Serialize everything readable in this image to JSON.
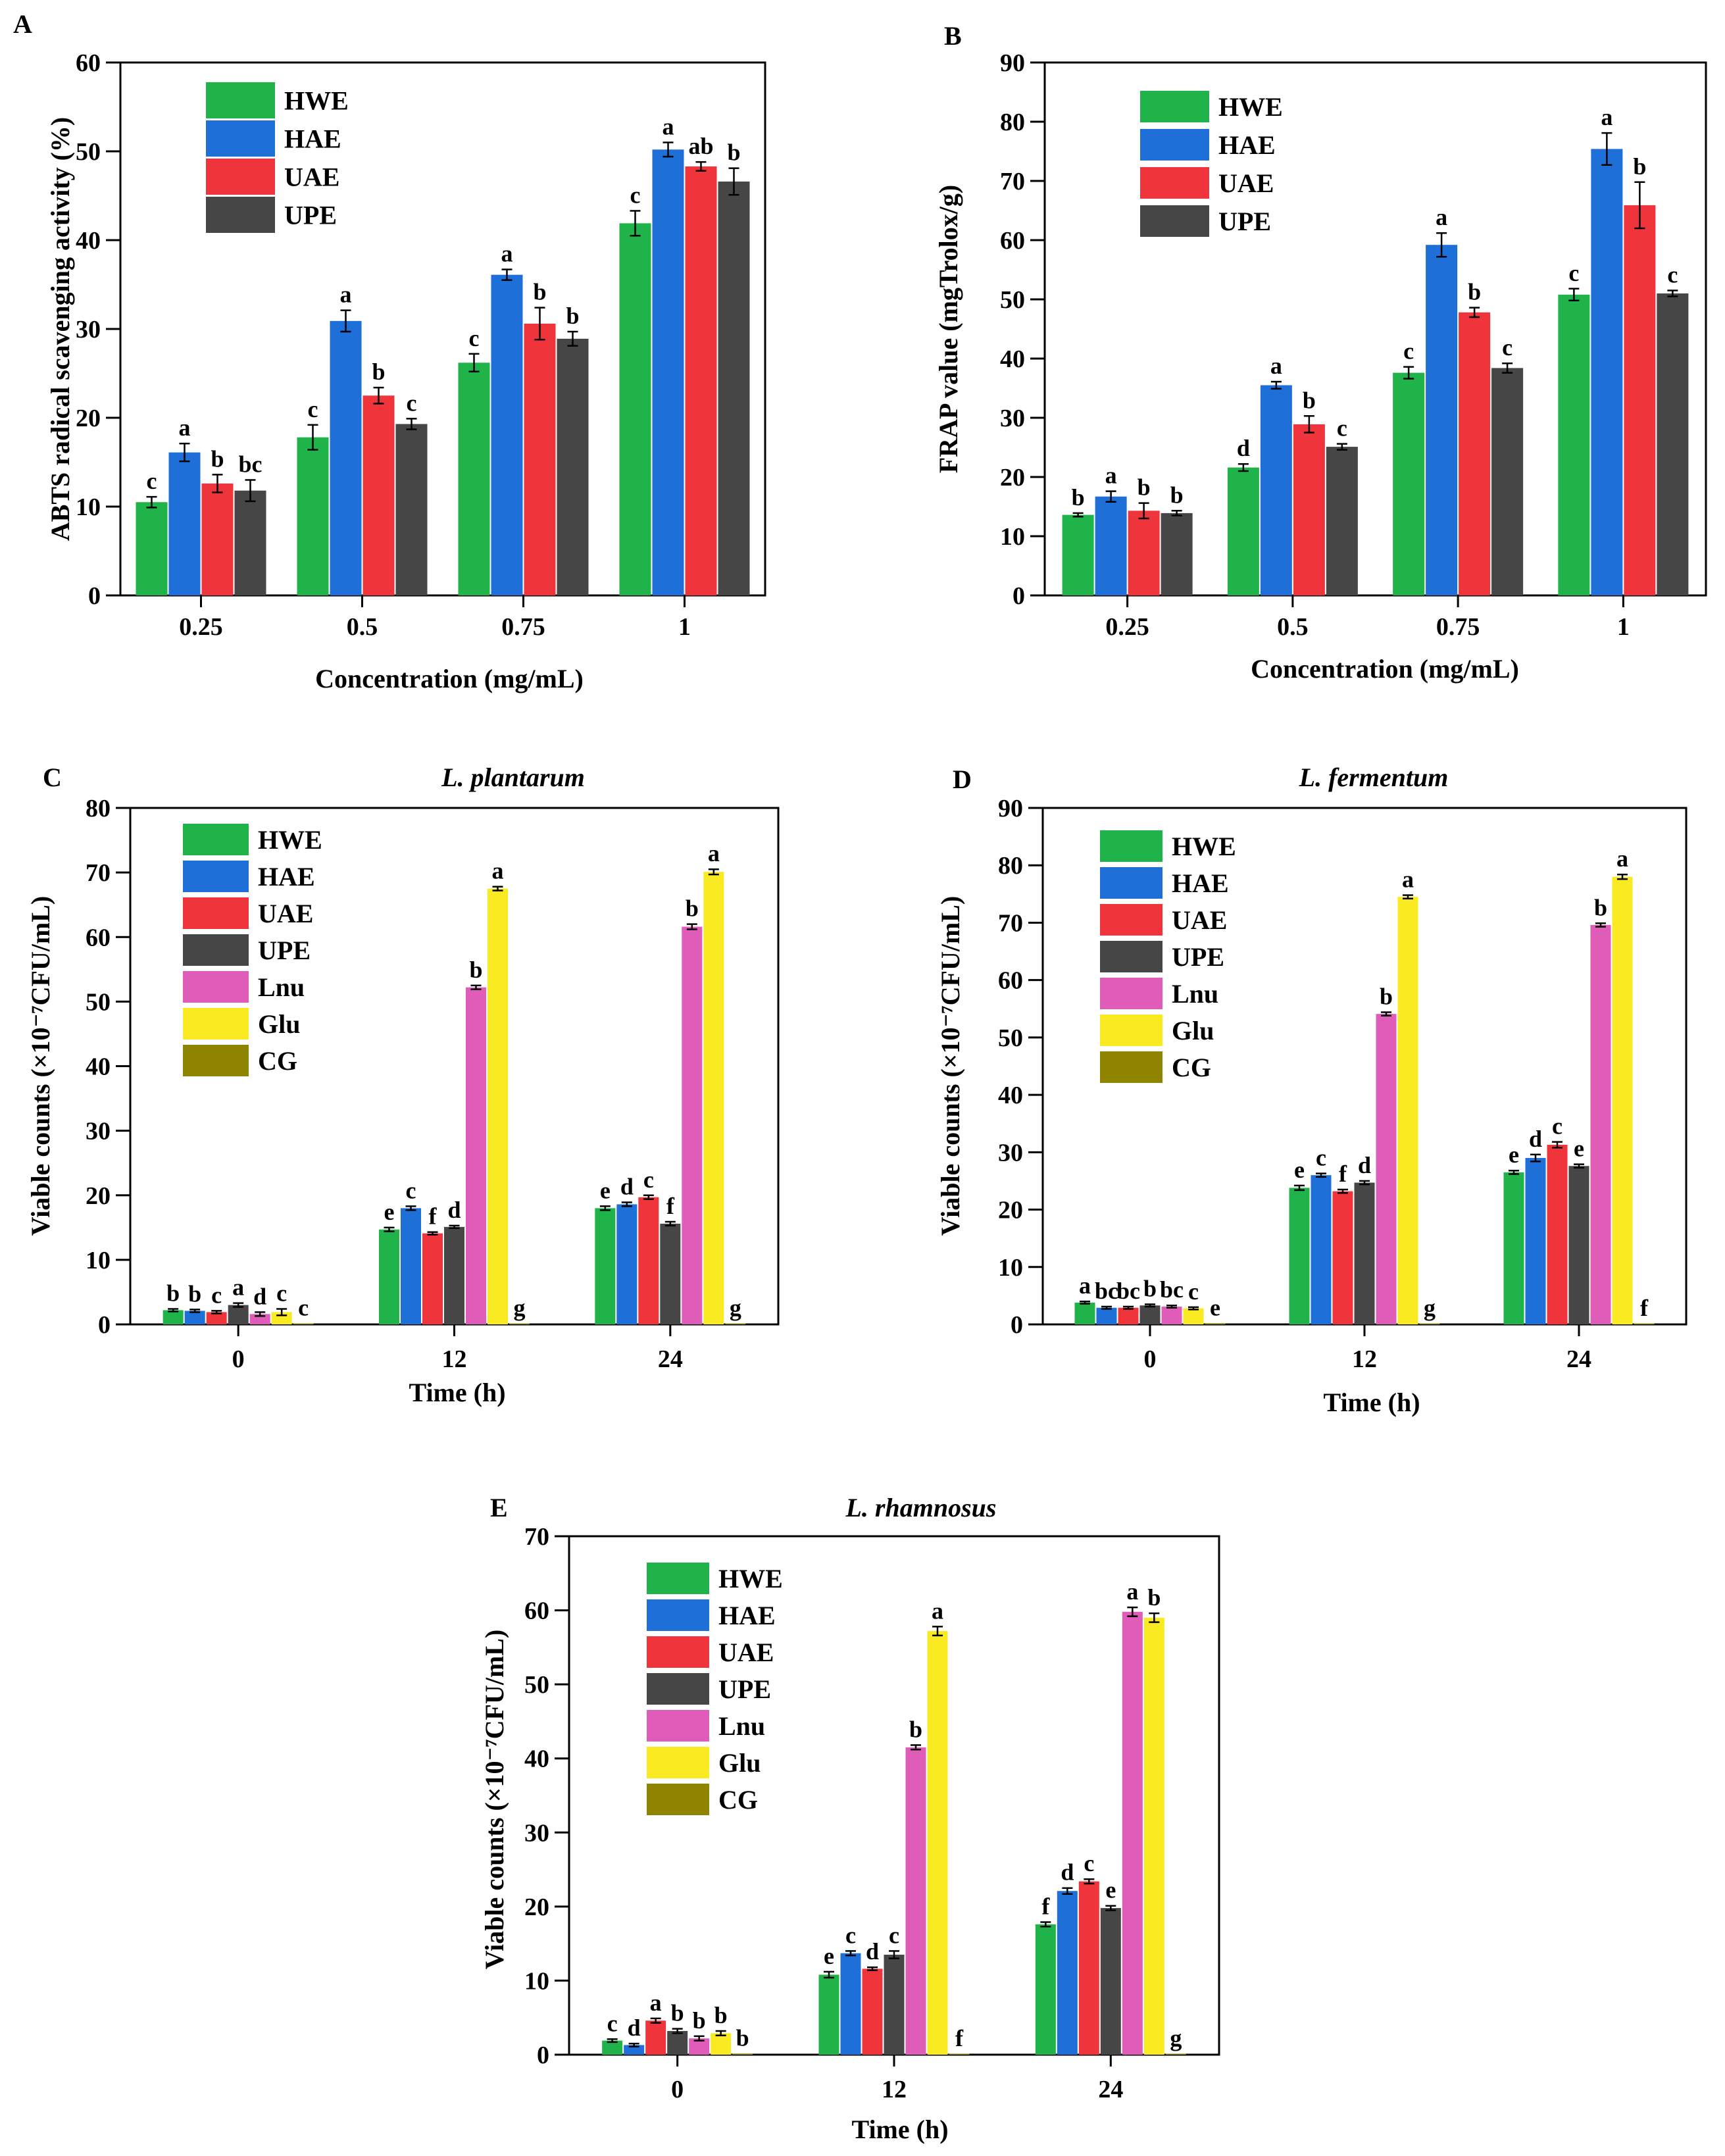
{
  "colors": {
    "HWE": "#1fb34a",
    "HAE": "#1f6fd8",
    "UAE": "#f0343b",
    "UPE": "#464646",
    "Lnu": "#e05cb9",
    "Glu": "#f9ea22",
    "CG": "#8f8400"
  },
  "chart_data": [
    {
      "id": "A",
      "panel_label": "A",
      "type": "bar",
      "title": "",
      "xlabel": "Concentration (mg/mL)",
      "ylabel": "ABTS radical scavenging activity (%)",
      "ylim": [
        0,
        60
      ],
      "yticks": [
        0,
        10,
        20,
        30,
        40,
        50,
        60
      ],
      "categories": [
        "0.25",
        "0.5",
        "0.75",
        "1"
      ],
      "legend": [
        "HWE",
        "HAE",
        "UAE",
        "UPE"
      ],
      "legend_position": "top-left",
      "series": [
        {
          "name": "HWE",
          "values": [
            10.5,
            17.8,
            26.2,
            41.9
          ],
          "errors": [
            0.6,
            1.4,
            1.0,
            1.4
          ],
          "labels": [
            "c",
            "c",
            "c",
            "c"
          ]
        },
        {
          "name": "HAE",
          "values": [
            16.1,
            30.9,
            36.1,
            50.2
          ],
          "errors": [
            1.0,
            1.2,
            0.6,
            0.8
          ],
          "labels": [
            "a",
            "a",
            "a",
            "a"
          ]
        },
        {
          "name": "UAE",
          "values": [
            12.6,
            22.5,
            30.6,
            48.3
          ],
          "errors": [
            1.0,
            0.9,
            1.8,
            0.5
          ],
          "labels": [
            "b",
            "b",
            "b",
            "ab"
          ]
        },
        {
          "name": "UPE",
          "values": [
            11.8,
            19.3,
            28.9,
            46.6
          ],
          "errors": [
            1.2,
            0.6,
            0.8,
            1.5
          ],
          "labels": [
            "bc",
            "c",
            "b",
            "b"
          ]
        }
      ]
    },
    {
      "id": "B",
      "panel_label": "B",
      "type": "bar",
      "title": "",
      "xlabel": "Concentration (mg/mL)",
      "ylabel": "FRAP value (mgTrolox/g)",
      "ylim": [
        0,
        90
      ],
      "yticks": [
        0,
        10,
        20,
        30,
        40,
        50,
        60,
        70,
        80,
        90
      ],
      "categories": [
        "0.25",
        "0.5",
        "0.75",
        "1"
      ],
      "legend": [
        "HWE",
        "HAE",
        "UAE",
        "UPE"
      ],
      "legend_position": "top-left",
      "series": [
        {
          "name": "HWE",
          "values": [
            13.6,
            21.6,
            37.6,
            50.8
          ],
          "errors": [
            0.3,
            0.6,
            1.0,
            1.0
          ],
          "labels": [
            "b",
            "d",
            "c",
            "c"
          ]
        },
        {
          "name": "HAE",
          "values": [
            16.7,
            35.5,
            59.2,
            75.4
          ],
          "errors": [
            0.9,
            0.6,
            2.0,
            2.7
          ],
          "labels": [
            "a",
            "a",
            "a",
            "a"
          ]
        },
        {
          "name": "UAE",
          "values": [
            14.3,
            28.9,
            47.8,
            65.9
          ],
          "errors": [
            1.3,
            1.4,
            0.8,
            3.9
          ],
          "labels": [
            "b",
            "b",
            "b",
            "b"
          ]
        },
        {
          "name": "UPE",
          "values": [
            13.9,
            25.1,
            38.4,
            51.0
          ],
          "errors": [
            0.4,
            0.5,
            0.8,
            0.5
          ],
          "labels": [
            "b",
            "c",
            "c",
            "c"
          ]
        }
      ]
    },
    {
      "id": "C",
      "panel_label": "C",
      "type": "bar",
      "title": "L. plantarum",
      "xlabel": "Time (h)",
      "ylabel": "Viable counts (×10⁻⁷CFU/mL)",
      "ylim": [
        0,
        80
      ],
      "yticks": [
        0,
        10,
        20,
        30,
        40,
        50,
        60,
        70,
        80
      ],
      "categories": [
        "0",
        "12",
        "24"
      ],
      "legend": [
        "HWE",
        "HAE",
        "UAE",
        "UPE",
        "Lnu",
        "Glu",
        "CG"
      ],
      "legend_position": "top-left",
      "series": [
        {
          "name": "HWE",
          "values": [
            2.2,
            14.7,
            18.0
          ],
          "errors": [
            0.2,
            0.3,
            0.3
          ],
          "labels": [
            "b",
            "e",
            "e"
          ]
        },
        {
          "name": "HAE",
          "values": [
            2.1,
            18.0,
            18.6
          ],
          "errors": [
            0.2,
            0.3,
            0.3
          ],
          "labels": [
            "b",
            "c",
            "d"
          ]
        },
        {
          "name": "UAE",
          "values": [
            1.9,
            14.1,
            19.7
          ],
          "errors": [
            0.2,
            0.2,
            0.3
          ],
          "labels": [
            "c",
            "f",
            "c"
          ]
        },
        {
          "name": "UPE",
          "values": [
            3.0,
            15.1,
            15.6
          ],
          "errors": [
            0.3,
            0.2,
            0.3
          ],
          "labels": [
            "a",
            "d",
            "f"
          ]
        },
        {
          "name": "Lnu",
          "values": [
            1.6,
            52.2,
            61.6
          ],
          "errors": [
            0.3,
            0.3,
            0.4
          ],
          "labels": [
            "d",
            "b",
            "b"
          ]
        },
        {
          "name": "Glu",
          "values": [
            1.9,
            67.5,
            70.1
          ],
          "errors": [
            0.5,
            0.3,
            0.4
          ],
          "labels": [
            "c",
            "a",
            "a"
          ]
        },
        {
          "name": "CG",
          "values": [
            0.15,
            0.1,
            0.1
          ],
          "errors": [
            0,
            0,
            0
          ],
          "labels": [
            "c",
            "g",
            "g"
          ]
        }
      ]
    },
    {
      "id": "D",
      "panel_label": "D",
      "type": "bar",
      "title": "L. fermentum",
      "xlabel": "Time (h)",
      "ylabel": "Viable counts (×10⁻⁷CFU/mL)",
      "ylim": [
        0,
        90
      ],
      "yticks": [
        0,
        10,
        20,
        30,
        40,
        50,
        60,
        70,
        80,
        90
      ],
      "categories": [
        "0",
        "12",
        "24"
      ],
      "legend": [
        "HWE",
        "HAE",
        "UAE",
        "UPE",
        "Lnu",
        "Glu",
        "CG"
      ],
      "legend_position": "top-left",
      "series": [
        {
          "name": "HWE",
          "values": [
            3.8,
            23.8,
            26.5
          ],
          "errors": [
            0.2,
            0.4,
            0.3
          ],
          "labels": [
            "a",
            "e",
            "e"
          ]
        },
        {
          "name": "HAE",
          "values": [
            2.9,
            26.0,
            29.0
          ],
          "errors": [
            0.2,
            0.3,
            0.6
          ],
          "labels": [
            "bc",
            "c",
            "d"
          ]
        },
        {
          "name": "UAE",
          "values": [
            2.9,
            23.2,
            31.3
          ],
          "errors": [
            0.2,
            0.3,
            0.5
          ],
          "labels": [
            "bc",
            "f",
            "c"
          ]
        },
        {
          "name": "UPE",
          "values": [
            3.3,
            24.7,
            27.6
          ],
          "errors": [
            0.2,
            0.3,
            0.3
          ],
          "labels": [
            "b",
            "d",
            "e"
          ]
        },
        {
          "name": "Lnu",
          "values": [
            3.1,
            54.1,
            69.6
          ],
          "errors": [
            0.2,
            0.3,
            0.3
          ],
          "labels": [
            "bc",
            "b",
            "b"
          ]
        },
        {
          "name": "Glu",
          "values": [
            2.8,
            74.5,
            78.0
          ],
          "errors": [
            0.2,
            0.3,
            0.4
          ],
          "labels": [
            "c",
            "a",
            "a"
          ]
        },
        {
          "name": "CG",
          "values": [
            0.2,
            0.1,
            0.1
          ],
          "errors": [
            0,
            0,
            0
          ],
          "labels": [
            "e",
            "g",
            "f"
          ]
        }
      ]
    },
    {
      "id": "E",
      "panel_label": "E",
      "type": "bar",
      "title": "L. rhamnosus",
      "xlabel": "Time (h)",
      "ylabel": "Viable counts (×10⁻⁷CFU/mL)",
      "ylim": [
        0,
        70
      ],
      "yticks": [
        0,
        10,
        20,
        30,
        40,
        50,
        60,
        70
      ],
      "categories": [
        "0",
        "12",
        "24"
      ],
      "legend": [
        "HWE",
        "HAE",
        "UAE",
        "UPE",
        "Lnu",
        "Glu",
        "CG"
      ],
      "legend_position": "top-left",
      "series": [
        {
          "name": "HWE",
          "values": [
            1.9,
            10.8,
            17.6
          ],
          "errors": [
            0.2,
            0.4,
            0.3
          ],
          "labels": [
            "c",
            "e",
            "f"
          ]
        },
        {
          "name": "HAE",
          "values": [
            1.3,
            13.7,
            22.1
          ],
          "errors": [
            0.2,
            0.3,
            0.4
          ],
          "labels": [
            "d",
            "c",
            "d"
          ]
        },
        {
          "name": "UAE",
          "values": [
            4.6,
            11.6,
            23.4
          ],
          "errors": [
            0.3,
            0.2,
            0.3
          ],
          "labels": [
            "a",
            "d",
            "c"
          ]
        },
        {
          "name": "UPE",
          "values": [
            3.2,
            13.5,
            19.8
          ],
          "errors": [
            0.3,
            0.5,
            0.3
          ],
          "labels": [
            "b",
            "c",
            "e"
          ]
        },
        {
          "name": "Lnu",
          "values": [
            2.2,
            41.5,
            59.8
          ],
          "errors": [
            0.3,
            0.3,
            0.6
          ],
          "labels": [
            "b",
            "b",
            "a"
          ]
        },
        {
          "name": "Glu",
          "values": [
            2.9,
            57.2,
            59.0
          ],
          "errors": [
            0.3,
            0.6,
            0.6
          ],
          "labels": [
            "b",
            "a",
            "b"
          ]
        },
        {
          "name": "CG",
          "values": [
            0.15,
            0.1,
            0.1
          ],
          "errors": [
            0,
            0,
            0
          ],
          "labels": [
            "b",
            "f",
            "g"
          ]
        }
      ]
    }
  ]
}
